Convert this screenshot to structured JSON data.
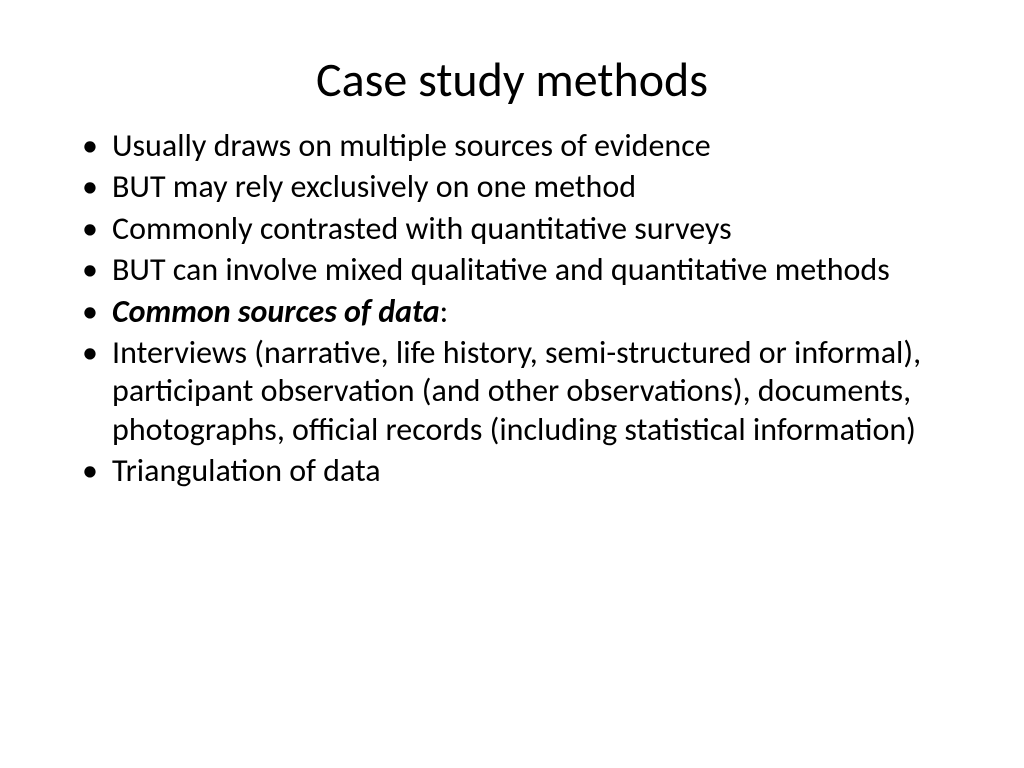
{
  "slide": {
    "title": "Case study methods",
    "bullets": [
      {
        "text": "Usually draws on multiple sources of evidence",
        "emphasis": false
      },
      {
        "text": "BUT may rely exclusively on one method",
        "emphasis": false
      },
      {
        "text": "Commonly contrasted with quantitative surveys",
        "emphasis": false
      },
      {
        "text": "BUT can involve mixed qualitative and quantitative methods",
        "emphasis": false
      },
      {
        "text": "Common sources of data",
        "suffix": ":",
        "emphasis": true
      },
      {
        "text": "Interviews (narrative, life history, semi-structured or informal), participant observation (and other observations), documents, photographs, official records (including statistical information)",
        "emphasis": false
      },
      {
        "text": "Triangulation of data",
        "emphasis": false
      }
    ],
    "style": {
      "background_color": "#ffffff",
      "text_color": "#000000",
      "title_fontsize": 48,
      "body_fontsize": 32,
      "font_family": "Calibri"
    }
  }
}
